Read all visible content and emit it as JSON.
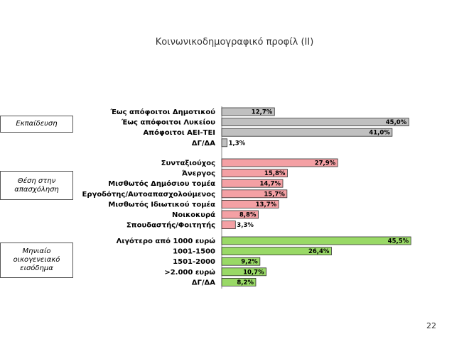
{
  "page": {
    "title": "Κοινωνικοδημογραφικό προφίλ (II)",
    "page_number": "22"
  },
  "groups": [
    {
      "label": "Εκπαίδευση"
    },
    {
      "label": "Θέση στην απασχόληση"
    },
    {
      "label": "Μηνιαίο οικογενειακό εισόδημα"
    }
  ],
  "chart_data": {
    "type": "bar",
    "orientation": "horizontal",
    "grid": false,
    "value_format": "percent",
    "xlim": [
      0,
      50
    ],
    "series": [
      {
        "group": "Εκπαίδευση",
        "color": "#c0c0c0",
        "categories": [
          "Έως απόφοιτοι Δημοτικού",
          "Έως απόφοιτοι Λυκείου",
          "Απόφοιτοι ΑΕΙ-ΤΕΙ",
          "ΔΓ/ΔΑ"
        ],
        "values": [
          12.7,
          45.0,
          41.0,
          1.3
        ],
        "labels": [
          "12,7%",
          "45,0%",
          "41,0%",
          "1,3%"
        ]
      },
      {
        "group": "Θέση στην απασχόληση",
        "color": "#f4a0a4",
        "categories": [
          "Συνταξιούχος",
          "Άνεργος",
          "Μισθωτός Δημόσιου τομέα",
          "Εργοδότης/Αυτοαπασχολούμενος",
          "Μισθωτός Ιδιωτικού τομέα",
          "Νοικοκυρά",
          "Σπουδαστής/Φοιτητής"
        ],
        "values": [
          27.9,
          15.8,
          14.7,
          15.7,
          13.7,
          8.8,
          3.3
        ],
        "labels": [
          "27,9%",
          "15,8%",
          "14,7%",
          "15,7%",
          "13,7%",
          "8,8%",
          "3,3%"
        ]
      },
      {
        "group": "Μηνιαίο οικογενειακό εισόδημα",
        "color": "#99d966",
        "categories": [
          "Λιγότερο από 1000 ευρώ",
          "1001-1500",
          "1501-2000",
          ">2.000 ευρώ",
          "ΔΓ/ΔΑ"
        ],
        "values": [
          45.5,
          26.4,
          9.2,
          10.7,
          8.2
        ],
        "labels": [
          "45,5%",
          "26,4%",
          "9,2%",
          "10,7%",
          "8,2%"
        ]
      }
    ]
  }
}
